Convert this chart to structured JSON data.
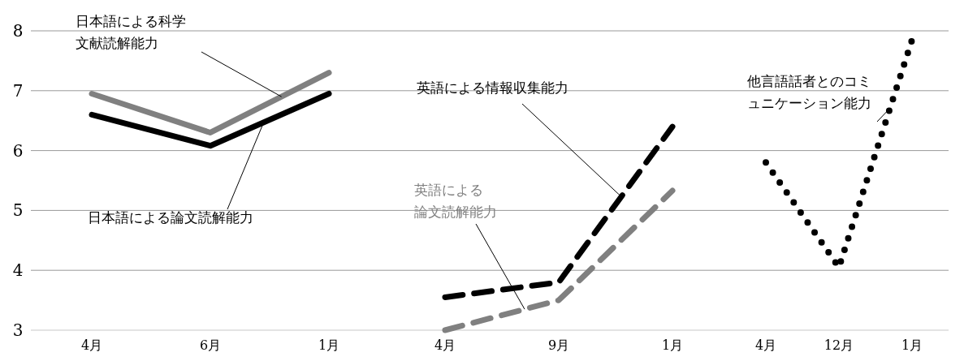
{
  "chart_data": [
    {
      "type": "line",
      "categories": [
        "4月",
        "6月",
        "1月"
      ],
      "ylim": [
        3,
        8
      ],
      "yticks": [
        3,
        4,
        5,
        6,
        7,
        8
      ],
      "grid": "y",
      "series": [
        {
          "name": "日本語による科学文献読解能力",
          "color": "#808080",
          "line_style": "solid",
          "values": [
            6.95,
            6.3,
            7.3
          ]
        },
        {
          "name": "日本語による論文読解能力",
          "color": "#000000",
          "line_style": "solid",
          "values": [
            6.6,
            6.08,
            6.95
          ]
        }
      ]
    },
    {
      "type": "line",
      "categories": [
        "4月",
        "9月",
        "1月"
      ],
      "ylim": [
        3,
        8
      ],
      "yticks": [
        3,
        4,
        5,
        6,
        7,
        8
      ],
      "grid": "y",
      "tick_labels": "x",
      "series": [
        {
          "name": "英語による情報収集能力",
          "color": "#000000",
          "line_style": "dashed",
          "values": [
            3.55,
            3.8,
            6.4
          ]
        },
        {
          "name": "英語による論文読解能力",
          "color": "#808080",
          "line_style": "dashed",
          "values": [
            3.0,
            3.5,
            5.33
          ]
        }
      ]
    },
    {
      "type": "line",
      "categories": [
        "4月",
        "12月",
        "1月"
      ],
      "ylim": [
        3,
        8
      ],
      "yticks": [
        3,
        4,
        5,
        6,
        7,
        8
      ],
      "grid": "y",
      "tick_labels": "x",
      "series": [
        {
          "name": "他言語話者とのコミュニケーション能力",
          "color": "#000000",
          "line_style": "dotted",
          "values": [
            5.8,
            4.05,
            7.85
          ]
        }
      ]
    }
  ]
}
